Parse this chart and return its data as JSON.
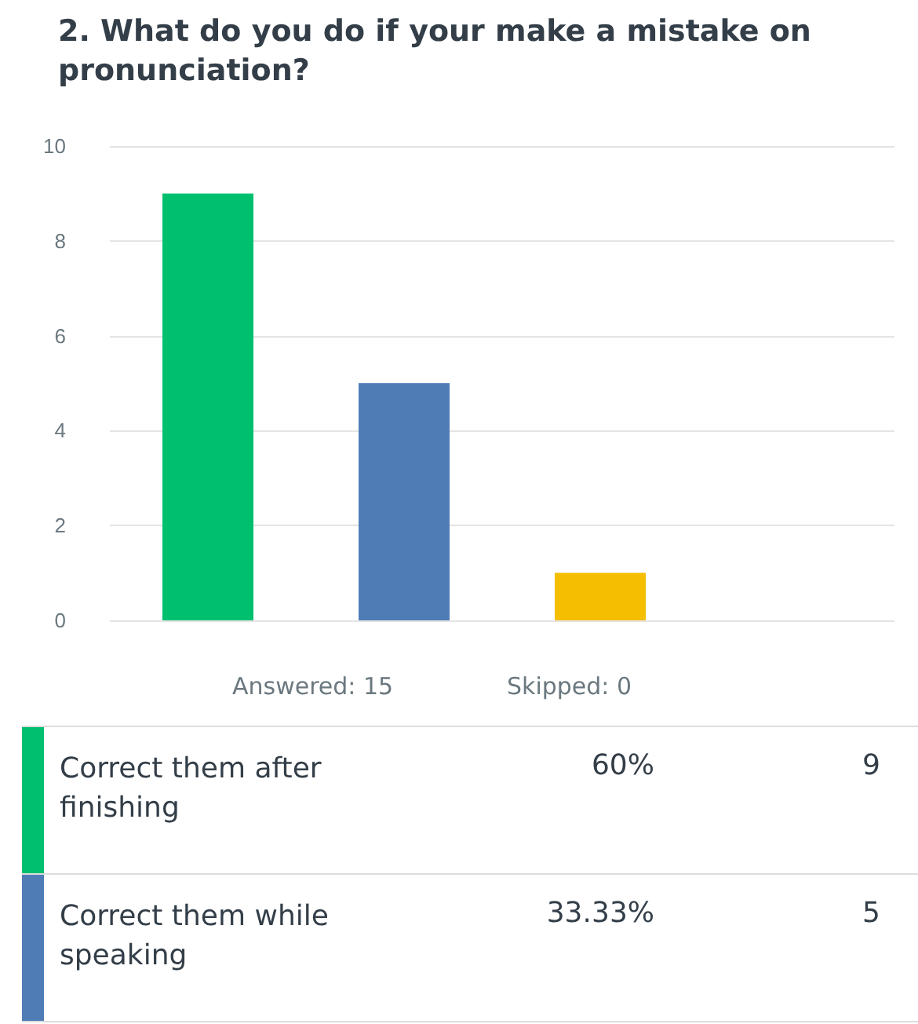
{
  "chart_data": {
    "type": "bar",
    "title": "2. What do you do if your make a mistake on pronunciation?",
    "categories": [
      null,
      null,
      null
    ],
    "values": [
      9,
      5,
      1
    ],
    "colors": [
      "#00bf6f",
      "#507cb6",
      "#f5be00"
    ],
    "ylim": [
      0,
      10
    ],
    "yticks": [
      0,
      2,
      4,
      6,
      8,
      10
    ],
    "grid": "y",
    "tick_labels": "y",
    "annotations": [
      "Answered: 15",
      "Skipped: 0",
      "Correct them after finishing",
      "60%",
      "9",
      "Correct them while speaking",
      "33.33%",
      "5"
    ]
  }
}
